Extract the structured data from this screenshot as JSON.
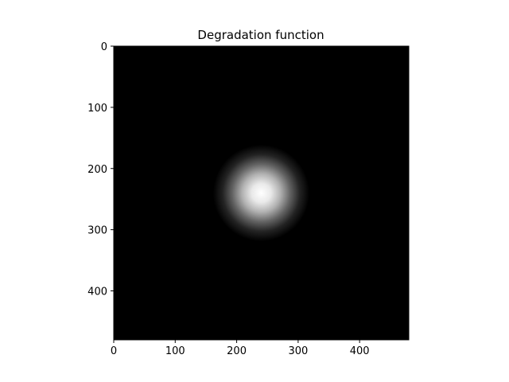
{
  "chart_data": {
    "type": "heatmap",
    "title": "Degradation function",
    "xlabel": "",
    "ylabel": "",
    "colormap": "gray",
    "xlim": [
      0,
      480
    ],
    "ylim": [
      480,
      0
    ],
    "x_ticks": [
      0,
      100,
      200,
      300,
      400
    ],
    "y_ticks": [
      0,
      100,
      200,
      300,
      400
    ],
    "x_tick_labels": [
      "0",
      "100",
      "200",
      "300",
      "400"
    ],
    "y_tick_labels": [
      "0",
      "100",
      "200",
      "300",
      "400"
    ],
    "function": "gaussian",
    "center": [
      240,
      240
    ],
    "sigma": 28,
    "peak_value": 1.0,
    "background_value": 0.0,
    "grid": false
  }
}
